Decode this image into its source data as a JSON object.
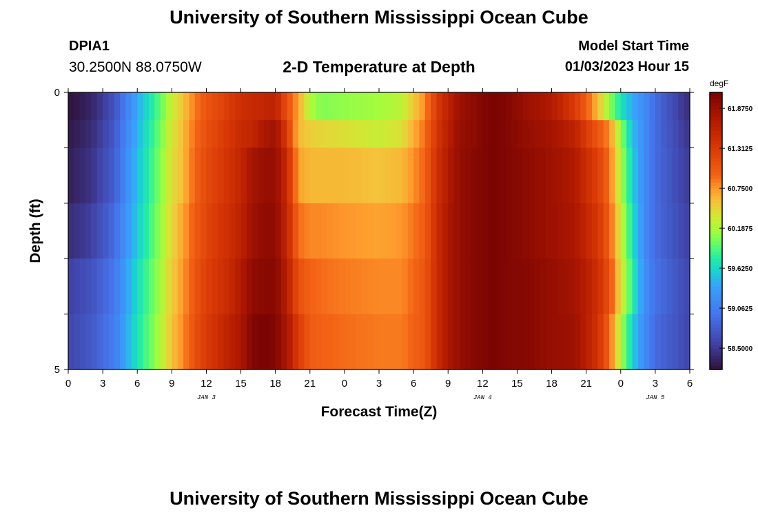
{
  "page": {
    "title_top": "University of Southern Mississippi Ocean Cube",
    "title_bottom": "University of Southern Mississippi Ocean Cube",
    "station_id": "DPIA1",
    "station_coords": "30.2500N  88.0750W",
    "plot_title": "2-D Temperature at Depth",
    "model_start_label": "Model Start Time",
    "model_start_value": "01/03/2023 Hour 15"
  },
  "chart_data": {
    "type": "heatmap",
    "title": "2-D Temperature at Depth",
    "xlabel": "Forecast Time(Z)",
    "ylabel": "Depth (ft)",
    "x_tick_labels": [
      "0",
      "3",
      "6",
      "9",
      "12",
      "15",
      "18",
      "21",
      "0",
      "3",
      "6",
      "9",
      "12",
      "15",
      "18",
      "21",
      "0",
      "3",
      "6"
    ],
    "x_hours_from_jan3_00z": [
      0,
      3,
      6,
      9,
      12,
      15,
      18,
      21,
      24,
      27,
      30,
      33,
      36,
      39,
      42,
      45,
      48,
      51,
      54
    ],
    "date_labels": [
      {
        "label": "JAN 3",
        "hour": 12
      },
      {
        "label": "JAN 4",
        "hour": 36
      },
      {
        "label": "JAN 5",
        "hour": 51
      }
    ],
    "y_tick_labels": [
      "0",
      "5"
    ],
    "ylim": [
      0,
      5
    ],
    "y_inverted": true,
    "colorbar": {
      "unit": "degF",
      "tick_labels": [
        "61.8750",
        "61.3125",
        "60.7500",
        "60.1875",
        "59.6250",
        "59.0625",
        "58.5000"
      ],
      "tick_values": [
        61.875,
        61.3125,
        60.75,
        60.1875,
        59.625,
        59.0625,
        58.5
      ],
      "range": [
        58.2,
        62.1
      ],
      "colormap": "turbo"
    },
    "depth_levels_ft": [
      0,
      0.5,
      1.5,
      2.5,
      3.5,
      4.5
    ],
    "time_control_hours": [
      0,
      2,
      4,
      6,
      8,
      9,
      10,
      11,
      12,
      14,
      15,
      16,
      17,
      18,
      19,
      20,
      21,
      22,
      24,
      27,
      29,
      31,
      32,
      33,
      34,
      35,
      36,
      37,
      38,
      40,
      42,
      44,
      45,
      46,
      47,
      48,
      49,
      50,
      51,
      54
    ],
    "temperature_degF": [
      [
        58.2,
        58.35,
        58.7,
        59.4,
        59.95,
        60.3,
        60.55,
        60.85,
        61.05,
        61.3,
        61.45,
        61.5,
        61.55,
        61.6,
        61.1,
        60.7,
        60.2,
        60.05,
        60.1,
        60.15,
        60.25,
        60.8,
        61.3,
        61.6,
        61.85,
        61.95,
        62.05,
        62.1,
        62.05,
        61.85,
        61.7,
        61.3,
        61.0,
        60.6,
        60.1,
        59.7,
        59.4,
        59.2,
        58.9,
        58.4
      ],
      [
        58.25,
        58.4,
        58.75,
        59.45,
        60.0,
        60.35,
        60.6,
        60.9,
        61.1,
        61.35,
        61.5,
        61.55,
        61.75,
        61.85,
        61.3,
        60.6,
        60.5,
        60.45,
        60.4,
        60.3,
        60.4,
        60.9,
        61.35,
        61.65,
        61.9,
        61.95,
        62.05,
        62.1,
        62.05,
        61.9,
        61.8,
        61.6,
        61.3,
        61.05,
        60.8,
        60.1,
        59.5,
        59.2,
        58.9,
        58.45
      ],
      [
        58.3,
        58.45,
        58.8,
        59.5,
        60.05,
        60.4,
        60.6,
        60.95,
        61.15,
        61.4,
        61.55,
        61.8,
        61.9,
        61.9,
        61.5,
        60.7,
        60.6,
        60.6,
        60.6,
        60.55,
        60.6,
        60.95,
        61.4,
        61.7,
        61.9,
        62.0,
        62.05,
        62.1,
        62.05,
        61.95,
        61.85,
        61.7,
        61.45,
        61.25,
        60.9,
        60.2,
        59.6,
        59.2,
        58.9,
        58.5
      ],
      [
        58.4,
        58.55,
        58.9,
        59.55,
        60.1,
        60.45,
        60.7,
        61.0,
        61.2,
        61.45,
        61.6,
        61.85,
        61.95,
        61.95,
        61.55,
        60.9,
        60.8,
        60.8,
        60.75,
        60.7,
        60.75,
        61.0,
        61.45,
        61.75,
        61.9,
        62.0,
        62.05,
        62.1,
        62.05,
        61.95,
        61.85,
        61.75,
        61.55,
        61.35,
        61.0,
        60.3,
        59.7,
        59.2,
        58.9,
        58.55
      ],
      [
        58.55,
        58.7,
        59.0,
        59.65,
        60.15,
        60.5,
        60.75,
        61.05,
        61.25,
        61.5,
        61.7,
        61.95,
        62.0,
        62.0,
        61.65,
        61.1,
        60.95,
        60.9,
        60.85,
        60.8,
        60.8,
        61.05,
        61.45,
        61.75,
        61.9,
        62.0,
        62.05,
        62.1,
        62.05,
        62.0,
        61.9,
        61.8,
        61.65,
        61.45,
        61.1,
        60.4,
        59.8,
        59.25,
        58.95,
        58.6
      ],
      [
        58.6,
        58.75,
        59.05,
        59.7,
        60.2,
        60.55,
        60.8,
        61.1,
        61.3,
        61.6,
        61.75,
        62.05,
        62.1,
        62.05,
        61.75,
        61.3,
        61.0,
        60.95,
        60.9,
        60.85,
        60.85,
        61.05,
        61.45,
        61.75,
        61.9,
        62.0,
        62.05,
        62.1,
        62.05,
        62.0,
        61.9,
        61.85,
        61.65,
        61.4,
        60.95,
        60.2,
        59.6,
        59.2,
        58.9,
        58.6
      ]
    ]
  }
}
